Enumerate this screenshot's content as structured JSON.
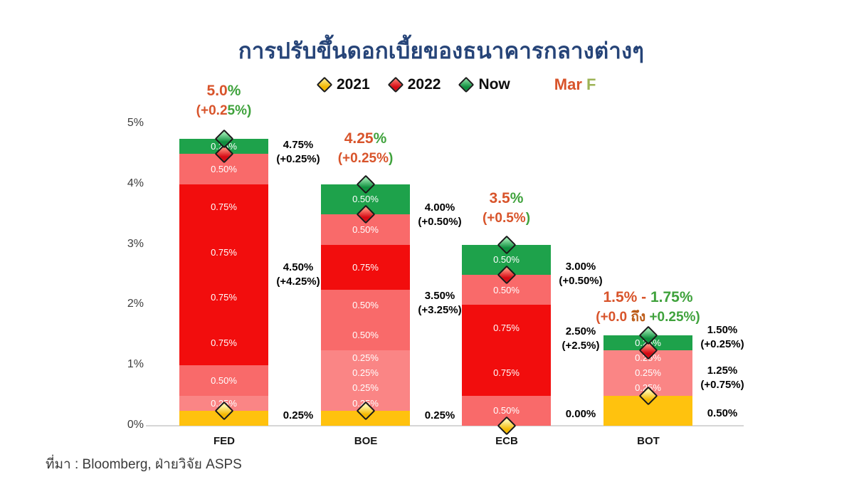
{
  "title": "การปรับขึ้นดอกเบี้ยของธนาคารกลางต่างๆ",
  "title_color": "#264478",
  "source": "ที่มา : Bloomberg, ฝ่ายวิจัย ASPS",
  "legend": {
    "items": [
      {
        "label": "2021",
        "marker": "yellow-diamond",
        "color": "#ffc20e"
      },
      {
        "label": "2022",
        "marker": "red-diamond",
        "color": "#f20d0d"
      },
      {
        "label": "Now",
        "marker": "green-diamond",
        "color": "#1ea24b"
      }
    ],
    "forecast_label": {
      "parts": [
        {
          "text": "Mar",
          "color": "#d8542b"
        },
        {
          "text": " F",
          "color": "#9db356"
        }
      ]
    }
  },
  "axis": {
    "y_labels": [
      "5%",
      "4%",
      "3%",
      "2%",
      "1%",
      "0%"
    ],
    "x_labels": [
      "FED",
      "BOE",
      "ECB",
      "BOT"
    ]
  },
  "chart_data": {
    "type": "bar",
    "subtype": "stacked",
    "title": "การปรับขึ้นดอกเบี้ยของธนาคารกลางต่างๆ",
    "unit": "percent policy rate",
    "ylim": [
      0,
      5
    ],
    "grid": false,
    "legend_position": "top",
    "categories": [
      "FED",
      "BOE",
      "ECB",
      "BOT"
    ],
    "series": [
      {
        "name": "2021 base rate",
        "values": [
          0.25,
          0.25,
          0.0,
          0.5
        ]
      },
      {
        "name": "2022 hikes total",
        "values": [
          4.25,
          3.25,
          2.5,
          0.75
        ]
      },
      {
        "name": "latest hike (Now)",
        "values": [
          0.25,
          0.5,
          0.5,
          0.25
        ]
      }
    ],
    "markers": {
      "2021": [
        0.25,
        0.25,
        0.0,
        0.5
      ],
      "2022": [
        4.5,
        3.5,
        2.5,
        1.25
      ],
      "now": [
        4.75,
        4.0,
        3.0,
        1.5
      ]
    },
    "banks": [
      {
        "name": "FED",
        "segments": [
          {
            "value": 0.25,
            "kind": "base2021",
            "label": ""
          },
          {
            "value": 0.25,
            "kind": "hike25",
            "label": "0.25%"
          },
          {
            "value": 0.5,
            "kind": "hike50",
            "label": "0.50%"
          },
          {
            "value": 0.75,
            "kind": "hike75",
            "label": "0.75%"
          },
          {
            "value": 0.75,
            "kind": "hike75",
            "label": "0.75%"
          },
          {
            "value": 0.75,
            "kind": "hike75",
            "label": "0.75%"
          },
          {
            "value": 0.75,
            "kind": "hike75",
            "label": "0.75%"
          },
          {
            "value": 0.5,
            "kind": "hike50",
            "label": "0.50%"
          },
          {
            "value": 0.25,
            "kind": "now",
            "label": "0.25%"
          }
        ],
        "markers": {
          "y2021": 0.25,
          "y2022": 4.5,
          "now": 4.75
        },
        "annotations": {
          "now": [
            "4.75%",
            "(+0.25%)"
          ],
          "mid": [
            "4.50%",
            "(+4.25%)"
          ],
          "base": [
            "0.25%"
          ]
        },
        "forecast": {
          "line1": [
            {
              "t": "5.0",
              "c": "o"
            },
            {
              "t": "%",
              "c": "g"
            }
          ],
          "line2": [
            {
              "t": "(+0.2",
              "c": "o"
            },
            {
              "t": "5%)",
              "c": "g"
            }
          ]
        }
      },
      {
        "name": "BOE",
        "segments": [
          {
            "value": 0.25,
            "kind": "base2021",
            "label": ""
          },
          {
            "value": 0.25,
            "kind": "hike25",
            "label": "0.25%"
          },
          {
            "value": 0.25,
            "kind": "hike25",
            "label": "0.25%"
          },
          {
            "value": 0.25,
            "kind": "hike25",
            "label": "0.25%"
          },
          {
            "value": 0.25,
            "kind": "hike25",
            "label": "0.25%"
          },
          {
            "value": 0.5,
            "kind": "hike50",
            "label": "0.50%"
          },
          {
            "value": 0.5,
            "kind": "hike50",
            "label": "0.50%"
          },
          {
            "value": 0.75,
            "kind": "hike75",
            "label": "0.75%"
          },
          {
            "value": 0.5,
            "kind": "hike50",
            "label": "0.50%"
          },
          {
            "value": 0.5,
            "kind": "now",
            "label": "0.50%"
          }
        ],
        "markers": {
          "y2021": 0.25,
          "y2022": 3.5,
          "now": 4.0
        },
        "annotations": {
          "now": [
            "4.00%",
            "(+0.50%)"
          ],
          "mid": [
            "3.50%",
            "(+3.25%)"
          ],
          "base": [
            "0.25%"
          ]
        },
        "forecast": {
          "line1": [
            {
              "t": "4.25",
              "c": "o"
            },
            {
              "t": "%",
              "c": "g"
            }
          ],
          "line2": [
            {
              "t": "(+0.25%",
              "c": "o"
            },
            {
              "t": ")",
              "c": "g"
            }
          ]
        }
      },
      {
        "name": "ECB",
        "segments": [
          {
            "value": 0.5,
            "kind": "hike50",
            "label": "0.50%"
          },
          {
            "value": 0.75,
            "kind": "hike75",
            "label": "0.75%"
          },
          {
            "value": 0.75,
            "kind": "hike75",
            "label": "0.75%"
          },
          {
            "value": 0.5,
            "kind": "hike50",
            "label": "0.50%"
          },
          {
            "value": 0.5,
            "kind": "now",
            "label": "0.50%"
          }
        ],
        "markers": {
          "y2021": 0.0,
          "y2022": 2.5,
          "now": 3.0
        },
        "annotations": {
          "now": [
            "3.00%",
            "(+0.50%)"
          ],
          "mid": [
            "2.50%",
            "(+2.5%)"
          ],
          "base": [
            "0.00%"
          ]
        },
        "forecast": {
          "line1": [
            {
              "t": "3.5",
              "c": "o"
            },
            {
              "t": "%",
              "c": "g"
            }
          ],
          "line2": [
            {
              "t": "(+0.5%",
              "c": "o"
            },
            {
              "t": ")",
              "c": "g"
            }
          ]
        }
      },
      {
        "name": "BOT",
        "segments": [
          {
            "value": 0.5,
            "kind": "base2021",
            "label": ""
          },
          {
            "value": 0.25,
            "kind": "hike25",
            "label": "0.25%"
          },
          {
            "value": 0.25,
            "kind": "hike25",
            "label": "0.25%"
          },
          {
            "value": 0.25,
            "kind": "hike25",
            "label": "0.25%"
          },
          {
            "value": 0.25,
            "kind": "now",
            "label": "0.25%"
          }
        ],
        "markers": {
          "y2021": 0.5,
          "y2022": 1.25,
          "now": 1.5
        },
        "annotations": {
          "now": [
            "1.50%",
            "(+0.25%)"
          ],
          "mid": [
            "1.25%",
            "(+0.75%)"
          ],
          "base": [
            "0.50%"
          ]
        },
        "forecast": {
          "line1": [
            {
              "t": "1.5% - ",
              "c": "o"
            },
            {
              "t": "1.75%",
              "c": "g"
            }
          ],
          "line2": [
            {
              "t": "(+0.0 ",
              "c": "o"
            },
            {
              "t": "ถึง ",
              "c": "b"
            },
            {
              "t": "+0.25%)",
              "c": "g"
            }
          ]
        }
      }
    ],
    "segment_colors": {
      "base2021": "#ffc20e",
      "hike25": "#fa8585",
      "hike50": "#f96a6a",
      "hike75": "#f20d0d",
      "now": "#1ea24b"
    }
  }
}
